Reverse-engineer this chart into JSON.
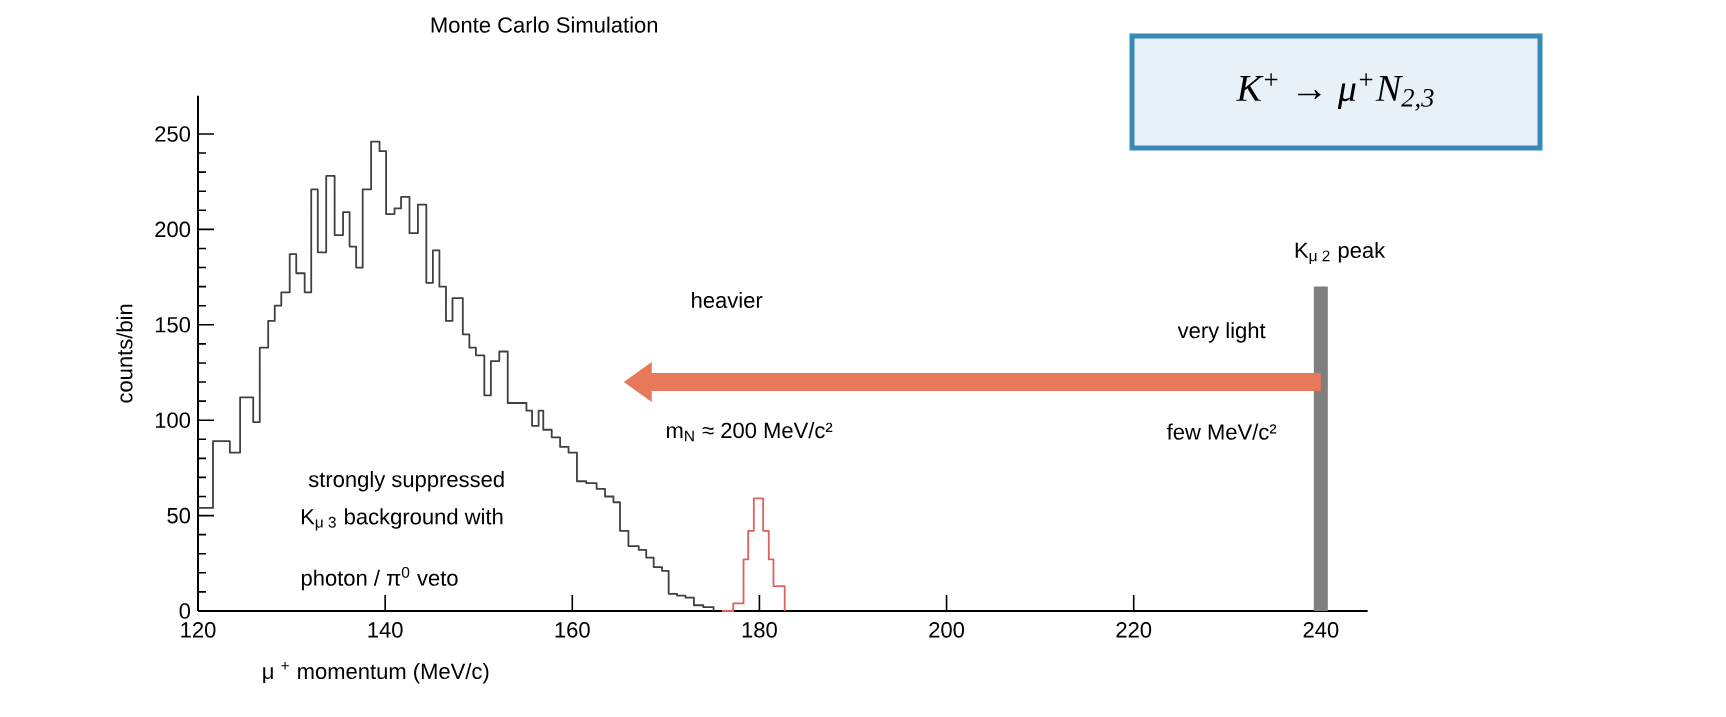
{
  "chart_data": {
    "type": "step",
    "title": "Monte Carlo Simulation",
    "xlabel": "μ $^{+}$ momentum (MeV/c)",
    "ylabel": "counts/bin",
    "series": [
      {
        "color": "#404040",
        "x": [
          120,
          121.6,
          123.4,
          124.5,
          125.9,
          126.6,
          127.5,
          128.2,
          128.9,
          129.8,
          130.5,
          131.4,
          132.1,
          132.8,
          133.7,
          134.6,
          135.5,
          136.2,
          136.9,
          137.6,
          138.5,
          139.4,
          140.1,
          141.0,
          141.7,
          142.6,
          143.5,
          144.4,
          145.1,
          145.8,
          146.5,
          147.2,
          148.3,
          149.0,
          149.7,
          150.6,
          151.3,
          152.2,
          153.1,
          155.1,
          155.7,
          156.4,
          156.9,
          157.8,
          158.7,
          159.6,
          160.5,
          161.5,
          162.6,
          163.5,
          164.4,
          165.1,
          166.0,
          167.1,
          167.9,
          168.7,
          169.6,
          170.3,
          171.2,
          172.1,
          173.0,
          174.0,
          175.1
        ],
        "values": [
          54,
          89,
          83,
          112,
          99,
          138,
          152,
          160,
          167,
          187,
          177,
          167,
          221,
          188,
          228,
          197,
          209,
          191,
          180,
          221,
          246,
          241,
          208,
          211,
          217,
          198,
          213,
          172,
          189,
          170,
          152,
          164,
          145,
          138,
          134,
          113,
          131,
          136,
          109,
          105,
          97,
          105,
          95,
          91,
          86,
          83,
          68,
          67,
          64,
          60,
          57,
          42,
          34,
          32,
          28,
          23,
          21,
          9,
          8,
          7,
          3,
          2,
          0
        ]
      },
      {
        "color": "#e06060",
        "x": [
          176.0,
          177.2,
          178.3,
          178.8,
          179.4,
          180.4,
          181.0,
          181.5,
          182.7
        ],
        "values": [
          0,
          4,
          27,
          42,
          59,
          42,
          27,
          13,
          0
        ]
      }
    ],
    "xlim": [
      120,
      245
    ],
    "ylim": [
      0,
      270
    ],
    "xticks": [
      120,
      140,
      160,
      180,
      200,
      220,
      240
    ],
    "yticks": [
      0,
      50,
      100,
      150,
      200,
      250
    ],
    "ref_lines": [
      {
        "axis": "x",
        "value": 240,
        "label": "K$_{μ 2}$ peak",
        "color": "#7f7f7f"
      }
    ],
    "annotations": [
      "heavier",
      "very light",
      "m$_{N}$ ≈ 200 MeV/c²",
      "few MeV/c²",
      "strongly suppressed",
      "K$_{μ 3}$ background with",
      "photon / π$^{0}$ veto",
      "K$^{+}$ → μ$^{+}$N$_{2,3}$"
    ],
    "grid": false
  }
}
